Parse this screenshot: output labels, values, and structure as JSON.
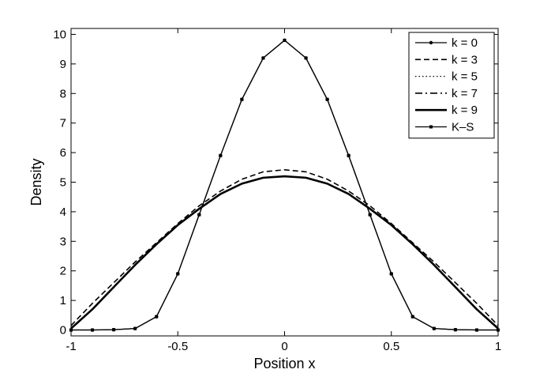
{
  "chart_data": {
    "type": "line",
    "title": "",
    "xlabel": "Position x",
    "ylabel": "Density",
    "xlim": [
      -1,
      1
    ],
    "ylim": [
      -0.2,
      10.2
    ],
    "xticks": [
      -1,
      -0.5,
      0,
      0.5,
      1
    ],
    "xtick_labels": [
      "-1",
      "-0.5",
      "0",
      "0.5",
      "1"
    ],
    "yticks": [
      0,
      1,
      2,
      3,
      4,
      5,
      6,
      7,
      8,
      9,
      10
    ],
    "ytick_labels": [
      "0",
      "1",
      "2",
      "3",
      "4",
      "5",
      "6",
      "7",
      "8",
      "9",
      "10"
    ],
    "grid": false,
    "legend_position": "top-right",
    "x": [
      -1,
      -0.9,
      -0.8,
      -0.7,
      -0.6,
      -0.5,
      -0.4,
      -0.3,
      -0.2,
      -0.1,
      0,
      0.1,
      0.2,
      0.3,
      0.4,
      0.5,
      0.6,
      0.7,
      0.8,
      0.9,
      1
    ],
    "series": [
      {
        "name": "k = 0",
        "style": "solid-dot",
        "values": [
          0.0,
          0.0,
          0.01,
          0.05,
          0.45,
          1.9,
          3.9,
          5.9,
          7.8,
          9.2,
          9.8,
          9.2,
          7.8,
          5.9,
          3.9,
          1.9,
          0.45,
          0.05,
          0.01,
          0.0,
          0.0
        ]
      },
      {
        "name": "k = 3",
        "style": "dashed",
        "values": [
          0.15,
          0.9,
          1.6,
          2.3,
          2.95,
          3.6,
          4.2,
          4.7,
          5.1,
          5.35,
          5.42,
          5.35,
          5.1,
          4.7,
          4.2,
          3.6,
          2.95,
          2.3,
          1.6,
          0.9,
          0.15
        ]
      },
      {
        "name": "k = 5",
        "style": "dotted",
        "values": [
          0.05,
          0.7,
          1.45,
          2.2,
          2.9,
          3.55,
          4.1,
          4.6,
          4.95,
          5.15,
          5.2,
          5.15,
          4.95,
          4.6,
          4.1,
          3.55,
          2.9,
          2.2,
          1.45,
          0.7,
          0.05
        ]
      },
      {
        "name": "k = 7",
        "style": "dashdot",
        "values": [
          0.05,
          0.7,
          1.45,
          2.2,
          2.9,
          3.55,
          4.1,
          4.6,
          4.95,
          5.15,
          5.2,
          5.15,
          4.95,
          4.6,
          4.1,
          3.55,
          2.9,
          2.2,
          1.45,
          0.7,
          0.05
        ]
      },
      {
        "name": "k = 9",
        "style": "thick-solid",
        "values": [
          0.05,
          0.7,
          1.45,
          2.2,
          2.9,
          3.55,
          4.1,
          4.6,
          4.95,
          5.15,
          5.2,
          5.15,
          4.95,
          4.6,
          4.1,
          3.55,
          2.9,
          2.2,
          1.45,
          0.7,
          0.05
        ]
      },
      {
        "name": "K–S",
        "style": "solid-square",
        "values": [
          0.0,
          0.0,
          0.01,
          0.05,
          0.45,
          1.9,
          3.9,
          5.9,
          7.8,
          9.2,
          9.8,
          9.2,
          7.8,
          5.9,
          3.9,
          1.9,
          0.45,
          0.05,
          0.01,
          0.0,
          0.0
        ]
      }
    ]
  }
}
